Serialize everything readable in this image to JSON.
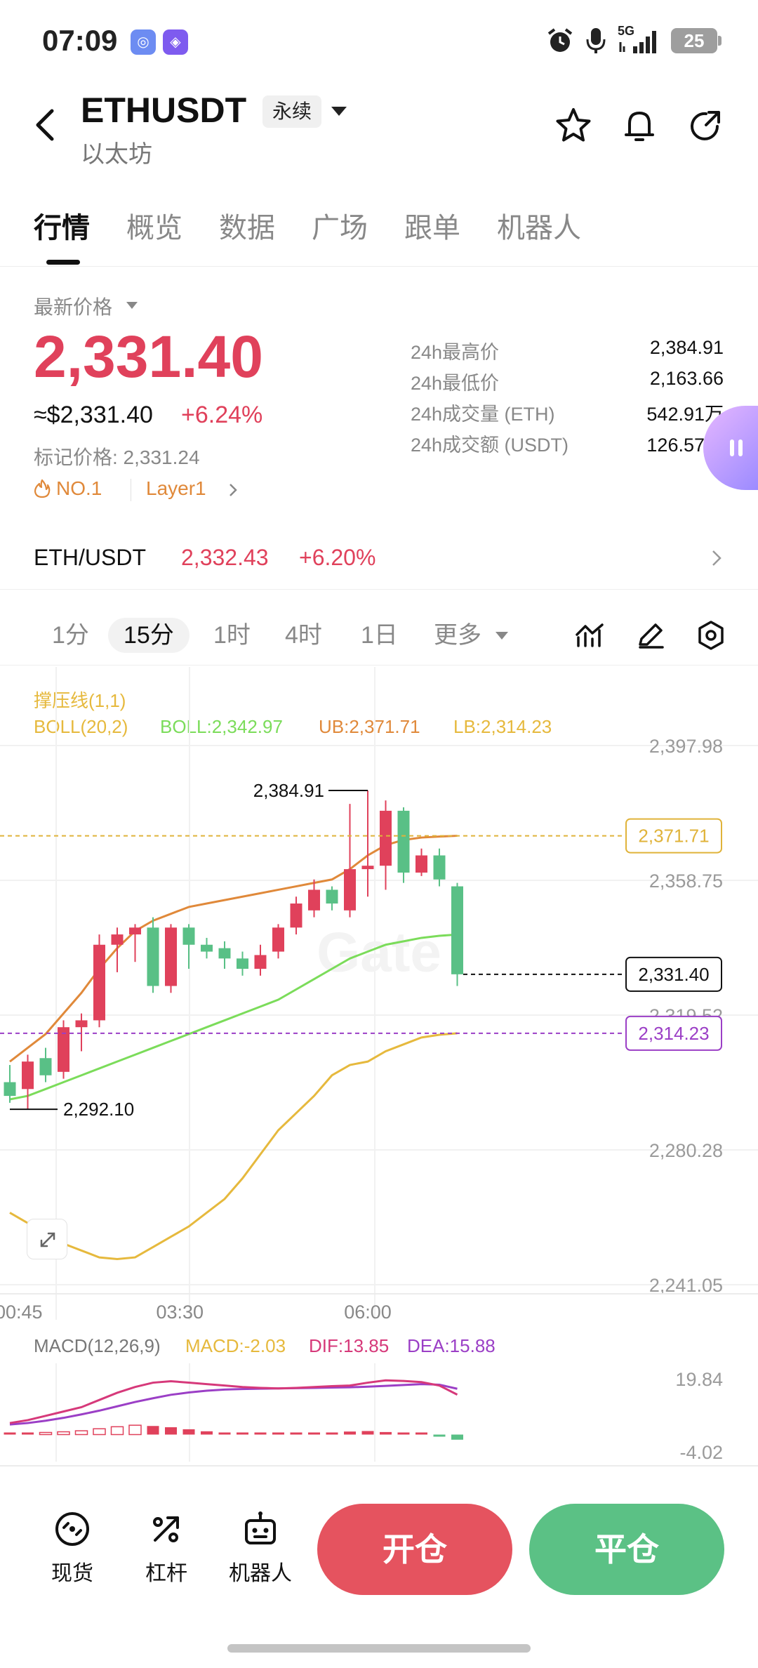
{
  "status_bar": {
    "time": "07:09",
    "network": "5G",
    "battery": "25"
  },
  "header": {
    "symbol": "ETHUSDT",
    "contract_type": "永续",
    "name": "以太坊"
  },
  "tabs": [
    {
      "label": "行情",
      "active": true
    },
    {
      "label": "概览",
      "active": false
    },
    {
      "label": "数据",
      "active": false
    },
    {
      "label": "广场",
      "active": false
    },
    {
      "label": "跟单",
      "active": false
    },
    {
      "label": "机器人",
      "active": false
    }
  ],
  "price": {
    "label": "最新价格",
    "last": "2,331.40",
    "usd": "≈$2,331.40",
    "change_pct": "+6.24%",
    "mark_price": "标记价格: 2,331.24",
    "rank_tag": "NO.1",
    "category_tag": "Layer1"
  },
  "stats": [
    {
      "label": "24h最高价",
      "value": "2,384.91"
    },
    {
      "label": "24h最低价",
      "value": "2,163.66"
    },
    {
      "label": "24h成交量 (ETH)",
      "value": "542.91万"
    },
    {
      "label": "24h成交额 (USDT)",
      "value": "126.57亿"
    }
  ],
  "spot": {
    "pair": "ETH/USDT",
    "price": "2,332.43",
    "change_pct": "+6.20%"
  },
  "intervals": [
    {
      "label": "1分",
      "active": false
    },
    {
      "label": "15分",
      "active": true
    },
    {
      "label": "1时",
      "active": false
    },
    {
      "label": "4时",
      "active": false
    },
    {
      "label": "1日",
      "active": false
    },
    {
      "label": "更多",
      "active": false
    }
  ],
  "indicators": {
    "sr_label": "撑压线(1,1)",
    "boll_params": "BOLL(20,2)",
    "boll_mid": "BOLL:2,342.97",
    "boll_ub": "UB:2,371.71",
    "boll_lb": "LB:2,314.23",
    "macd_params": "MACD(12,26,9)",
    "macd_value": "MACD:-2.03",
    "dif_value": "DIF:13.85",
    "dea_value": "DEA:15.88"
  },
  "chart_data": {
    "type": "candlestick",
    "interval": "15分",
    "watermark": "Gate",
    "y_ticks": [
      2397.98,
      2358.75,
      2319.52,
      2280.28,
      2241.05
    ],
    "y_tick_labels": [
      "2,397.98",
      "2,358.75",
      "2,319.52",
      "2,280.28",
      "2,241.05"
    ],
    "ylim": [
      2241.05,
      2397.98
    ],
    "x_tick_labels": [
      "00:45",
      "03:30",
      "06:00"
    ],
    "x_tick_index": [
      0.5,
      9.5,
      20
    ],
    "high_marker": {
      "index": 20,
      "value": 2384.91,
      "label": "2,384.91"
    },
    "low_marker": {
      "index": 0,
      "value": 2292.1,
      "label": "2,292.10"
    },
    "price_lines": [
      {
        "value": 2371.71,
        "label": "2,371.71",
        "color": "#e0b33a"
      },
      {
        "value": 2331.4,
        "label": "2,331.40",
        "color": "#111111"
      },
      {
        "value": 2314.23,
        "label": "2,314.23",
        "color": "#9b3fc6"
      }
    ],
    "candles": [
      [
        2300,
        2305,
        2294,
        2296
      ],
      [
        2298,
        2308,
        2292.1,
        2306
      ],
      [
        2307,
        2310,
        2300,
        2302
      ],
      [
        2303,
        2318,
        2301,
        2316
      ],
      [
        2316,
        2320,
        2309,
        2318
      ],
      [
        2318,
        2343,
        2316,
        2340
      ],
      [
        2340,
        2345,
        2332,
        2343
      ],
      [
        2343,
        2346,
        2335,
        2345
      ],
      [
        2345,
        2348,
        2326,
        2328
      ],
      [
        2328,
        2346,
        2326,
        2345
      ],
      [
        2345,
        2346,
        2333,
        2340
      ],
      [
        2340,
        2342,
        2336,
        2338
      ],
      [
        2339,
        2341,
        2333,
        2336
      ],
      [
        2336,
        2338,
        2331,
        2333
      ],
      [
        2333,
        2340,
        2331,
        2337
      ],
      [
        2338,
        2346,
        2336,
        2345
      ],
      [
        2345,
        2354,
        2343,
        2352
      ],
      [
        2350,
        2359,
        2348,
        2356
      ],
      [
        2356,
        2357,
        2350,
        2352
      ],
      [
        2350,
        2381,
        2348,
        2362
      ],
      [
        2362,
        2384.91,
        2354,
        2363
      ],
      [
        2363,
        2382,
        2356,
        2379
      ],
      [
        2379,
        2380,
        2358,
        2361
      ],
      [
        2361,
        2368,
        2360,
        2366
      ],
      [
        2366,
        2368,
        2357,
        2359
      ],
      [
        2357,
        2358,
        2328,
        2331.4
      ]
    ],
    "boll_ub": [
      2306,
      2310,
      2314,
      2320,
      2326,
      2333,
      2339,
      2344,
      2347,
      2349,
      2351,
      2352,
      2353,
      2354,
      2355,
      2356,
      2357,
      2358,
      2359,
      2362,
      2366,
      2369,
      2370.5,
      2371.2,
      2371.5,
      2371.71
    ],
    "boll_mid": [
      2295,
      2296,
      2298,
      2300,
      2302,
      2304,
      2306,
      2308,
      2310,
      2312,
      2314,
      2316,
      2318,
      2320,
      2322,
      2324,
      2327,
      2330,
      2333,
      2336,
      2338,
      2340,
      2341,
      2342,
      2342.6,
      2342.97
    ],
    "boll_lb": [
      2262,
      2259,
      2256,
      2253,
      2251,
      2249,
      2248.5,
      2249,
      2252,
      2255,
      2258,
      2262,
      2266,
      2272,
      2279,
      2286,
      2291,
      2296,
      2302,
      2305,
      2306,
      2309,
      2311,
      2313,
      2313.8,
      2314.23
    ],
    "macd_panel": {
      "y_tick_labels": [
        "19.84",
        "-4.02"
      ],
      "ylim": [
        -4.02,
        19.84
      ],
      "dif": [
        4,
        5,
        6.5,
        8,
        9.5,
        12,
        14.5,
        16.5,
        18,
        18.5,
        18,
        17.5,
        17,
        16.5,
        16.2,
        16,
        16.2,
        16.5,
        16.8,
        17,
        18,
        18.8,
        18.6,
        18.2,
        17,
        13.85
      ],
      "dea": [
        3.5,
        4,
        4.8,
        5.8,
        7,
        8.3,
        9.8,
        11.3,
        12.6,
        13.8,
        14.6,
        15.2,
        15.6,
        15.8,
        15.9,
        16,
        16.1,
        16.2,
        16.3,
        16.4,
        16.6,
        16.9,
        17.2,
        17.5,
        17.3,
        15.88
      ],
      "macd": [
        0.5,
        0.6,
        0.8,
        1.1,
        1.5,
        2.3,
        3.1,
        3.7,
        3.4,
        2.9,
        2.1,
        1.3,
        0.6,
        0.2,
        0.1,
        0.05,
        0.3,
        0.6,
        0.8,
        1.2,
        1.4,
        1.0,
        0.7,
        0.4,
        -0.3,
        -2.03
      ]
    }
  },
  "bottom_nav": [
    {
      "label": "现货",
      "icon": "spot-icon"
    },
    {
      "label": "杠杆",
      "icon": "leverage-icon"
    },
    {
      "label": "机器人",
      "icon": "robot-icon"
    }
  ],
  "actions": {
    "open_label": "开仓",
    "close_label": "平仓"
  },
  "colors": {
    "up": "#e0415b",
    "down": "#59c086",
    "accent_orange": "#e0893a",
    "boll_mid": "#7bdc5a",
    "boll_bands": "#e6b93d"
  }
}
